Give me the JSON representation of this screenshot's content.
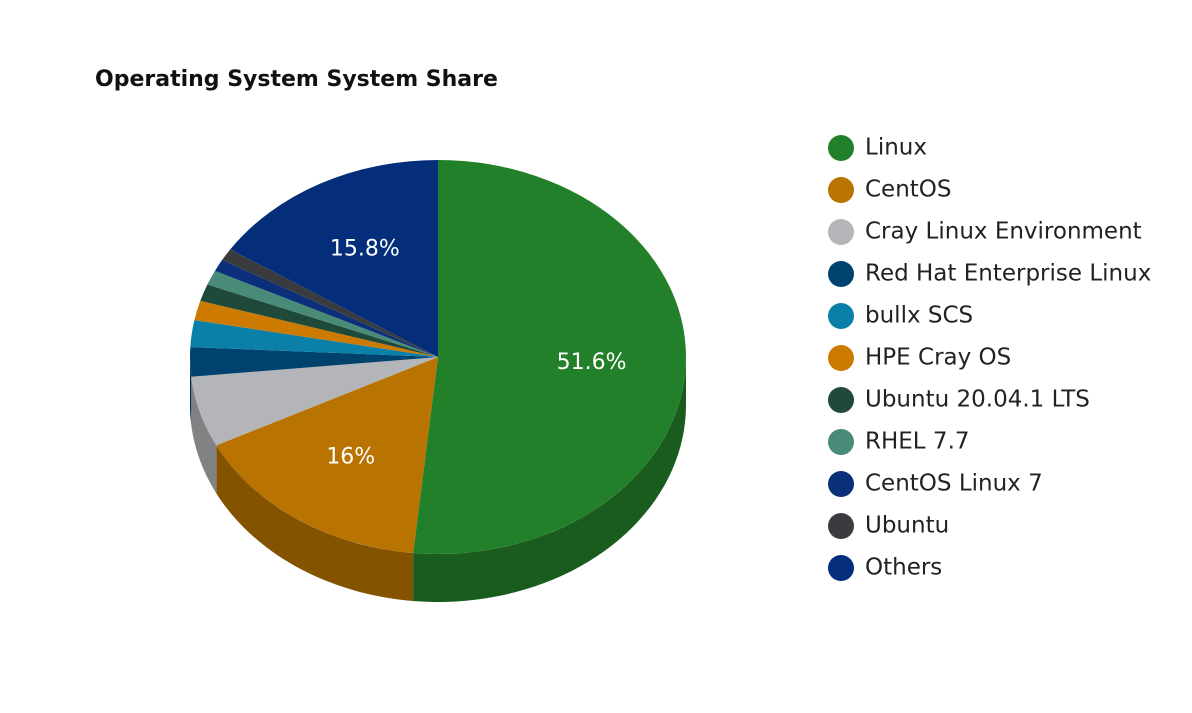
{
  "chart_data": {
    "type": "pie3d",
    "title": "Operating System System Share",
    "categories": [
      "Linux",
      "CentOS",
      "Cray Linux Environment",
      "Red Hat Enterprise Linux",
      "bullx SCS",
      "HPE Cray OS",
      "Ubuntu 20.04.1 LTS",
      "RHEL 7.7",
      "CentOS Linux 7",
      "Ubuntu",
      "Others"
    ],
    "values": [
      51.6,
      16,
      5.8,
      2.4,
      2.2,
      1.6,
      1.4,
      1.2,
      1.0,
      1.0,
      15.8
    ],
    "value_labels": [
      "51.6%",
      "16%",
      null,
      null,
      null,
      null,
      null,
      null,
      null,
      null,
      "15.8%"
    ],
    "colors": [
      "#23802a",
      "#b87300",
      "#b3b5b8",
      "#00426e",
      "#0a7fa8",
      "#cc7a00",
      "#1f4a3a",
      "#4a8a78",
      "#0c2f7a",
      "#3a3b3e",
      "#042e7a"
    ],
    "legend": "right"
  }
}
